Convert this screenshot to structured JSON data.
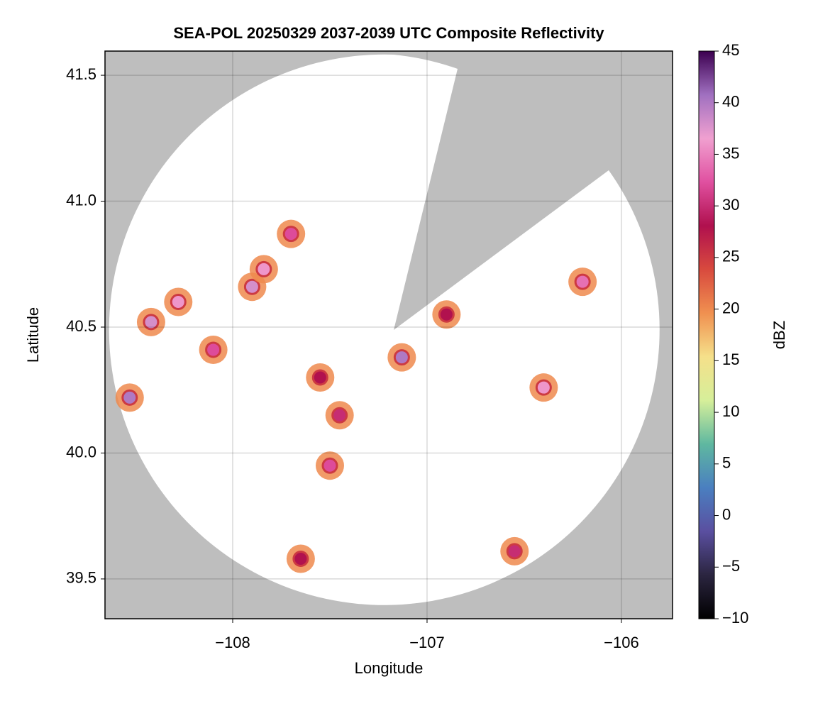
{
  "chart_data": {
    "type": "radar-map",
    "title": "SEA-POL 20250329 2037-2039 UTC Composite Reflectivity",
    "x_label": "Longitude",
    "y_label": "Latitude",
    "colorbar_label": "dBZ",
    "xlim": [
      -108.657,
      -105.737
    ],
    "ylim": [
      39.342,
      41.596
    ],
    "xticks": [
      {
        "value": -108,
        "label": "−108"
      },
      {
        "value": -107,
        "label": "−107"
      },
      {
        "value": -106,
        "label": "−106"
      }
    ],
    "yticks": [
      39.5,
      {
        "value": 40.0,
        "label": "40.0"
      },
      40.5,
      {
        "value": 41.0,
        "label": "41.0"
      },
      41.5
    ],
    "clim": [
      -10,
      45
    ],
    "cticks": [
      {
        "value": -10,
        "label": "−10"
      },
      {
        "value": -5,
        "label": "−5"
      },
      0,
      5,
      10,
      15,
      20,
      25,
      30,
      35,
      40,
      45
    ],
    "colormap": [
      "#000000",
      "#2b2540",
      "#5a4fa0",
      "#4a7fc0",
      "#5fb8a0",
      "#d6ef9a",
      "#f5e08a",
      "#f09050",
      "#d84a3e",
      "#b0104e",
      "#e050a0",
      "#f0a0d0",
      "#a070c0",
      "#3c0050"
    ],
    "grid": true,
    "x": [
      -108.53,
      -108.42,
      -108.28,
      -108.1,
      -107.9,
      -107.84,
      -107.7,
      -107.55,
      -107.45,
      -107.13,
      -106.9,
      -106.4,
      -106.2,
      -107.5,
      -106.55,
      -107.65
    ],
    "y": [
      40.22,
      40.52,
      40.6,
      40.41,
      40.66,
      40.73,
      40.87,
      40.3,
      40.15,
      40.38,
      40.55,
      40.26,
      40.68,
      39.95,
      39.61,
      39.58
    ],
    "values": [
      40,
      38,
      36,
      32,
      38,
      36,
      32,
      28,
      30,
      40,
      28,
      36,
      34,
      32,
      30,
      28
    ]
  }
}
